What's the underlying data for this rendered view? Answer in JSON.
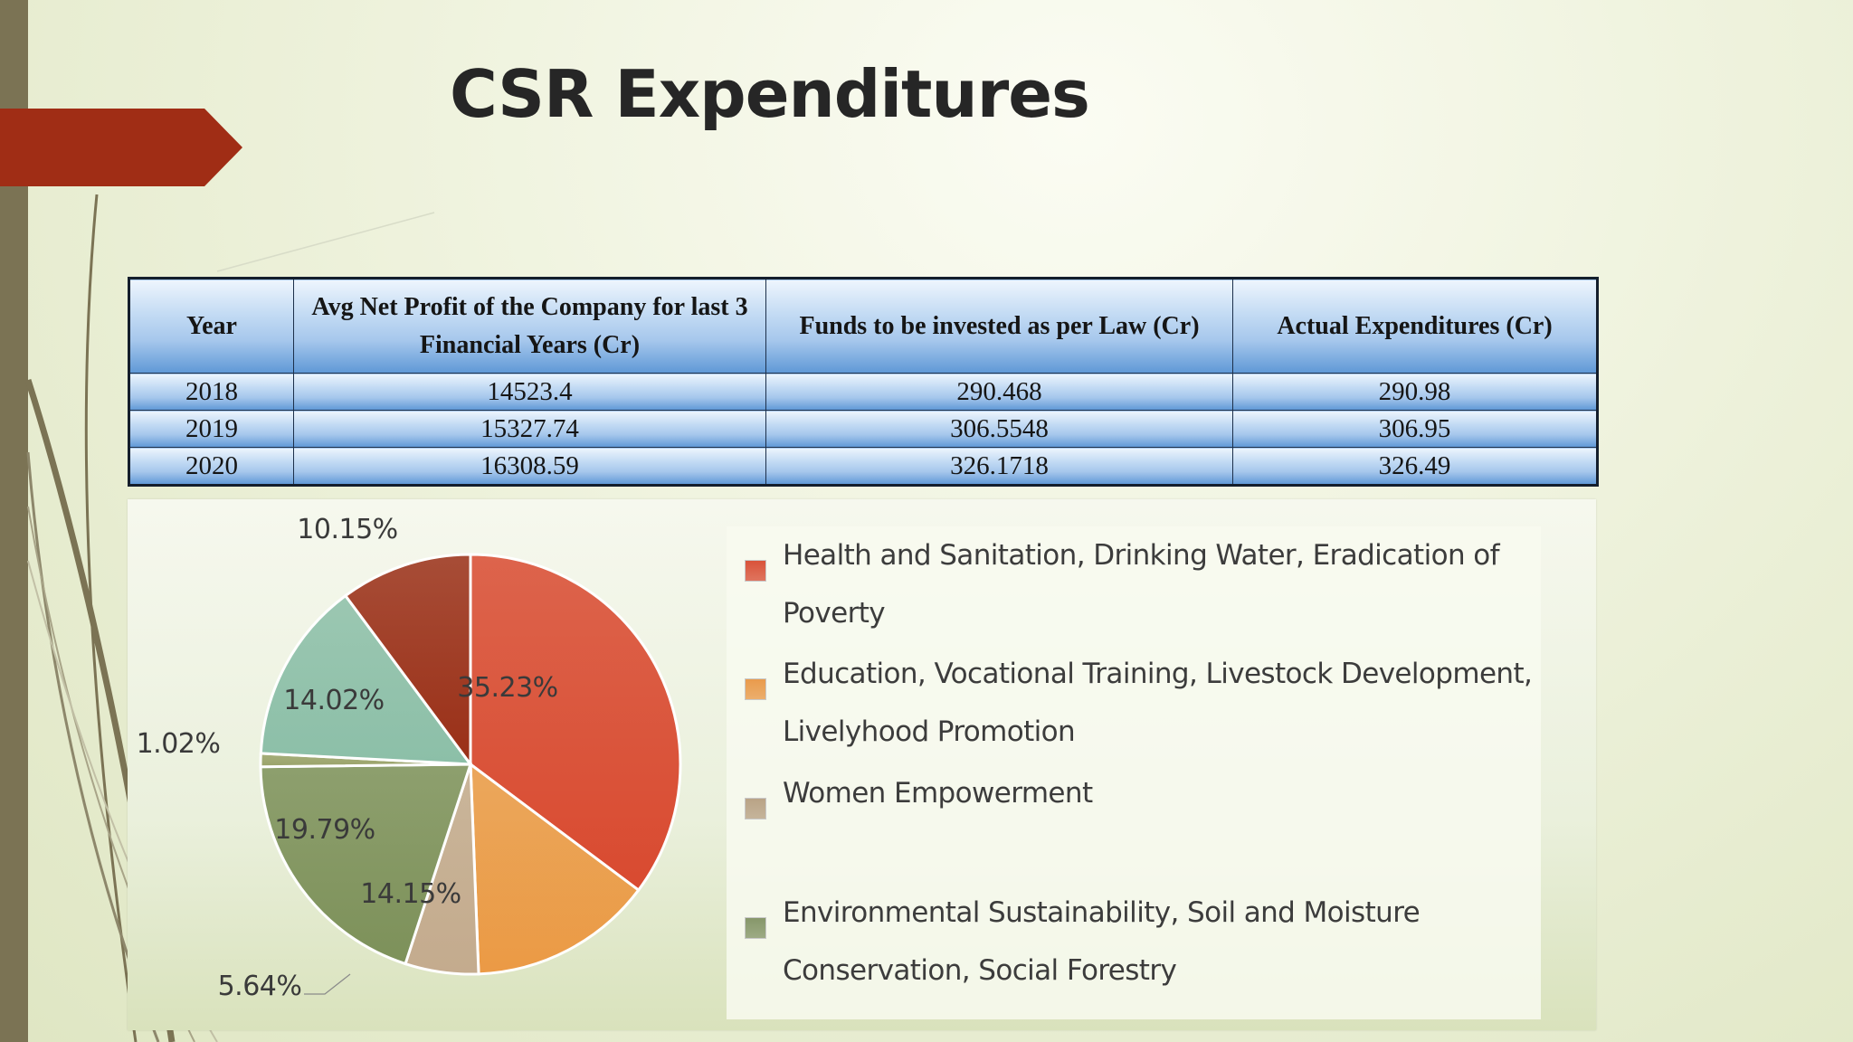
{
  "slide": {
    "title": "CSR Expenditures"
  },
  "table": {
    "headers": [
      "Year",
      "Avg Net Profit of the Company for last 3 Financial Years (Cr)",
      "Funds to be invested as per Law (Cr)",
      "Actual Expenditures (Cr)"
    ],
    "rows": [
      [
        "2018",
        "14523.4",
        "290.468",
        "290.98"
      ],
      [
        "2019",
        "15327.74",
        "306.5548",
        "306.95"
      ],
      [
        "2020",
        "16308.59",
        "326.1718",
        "326.49"
      ]
    ]
  },
  "chart_data": {
    "type": "pie",
    "title": "",
    "slices": [
      {
        "label": "Health and Sanitation, Drinking Water, Eradication of Poverty",
        "value": 35.23,
        "value_label": "35.23%",
        "color": "#d94a30"
      },
      {
        "label": "Education, Vocational Training, Livestock Development, Livelyhood Promotion",
        "value": 14.15,
        "value_label": "14.15%",
        "color": "#eb9a45"
      },
      {
        "label": "Women Empowerment",
        "value": 5.64,
        "value_label": "5.64%",
        "color": "#c4ab8e"
      },
      {
        "label": "",
        "value": 19.79,
        "value_label": "19.79%",
        "color": "#7d915a"
      },
      {
        "label": "",
        "value": 1.02,
        "value_label": "1.02%",
        "color": "#9aa36a"
      },
      {
        "label": "",
        "value": 14.02,
        "value_label": "14.02%",
        "color": "#8cbfa8"
      },
      {
        "label": "",
        "value": 10.15,
        "value_label": "10.15%",
        "color": "#9a2f17"
      }
    ],
    "legend": [
      {
        "label": "Health and Sanitation, Drinking Water, Eradication of Poverty",
        "color": "#d9533a"
      },
      {
        "label": "Education, Vocational Training, Livestock Development, Livelyhood Promotion",
        "color": "#e99b4c"
      },
      {
        "label": "Women Empowerment",
        "color": "#b9a386"
      },
      {
        "label": "Environmental Sustainability, Soil and Moisture Conservation, Social Forestry",
        "color": "#86976a"
      }
    ],
    "legend_position": "right"
  },
  "colors": {
    "accent_arrow": "#a02d15",
    "side_bar": "#7b7354",
    "table_border": "#1c2f4a"
  }
}
